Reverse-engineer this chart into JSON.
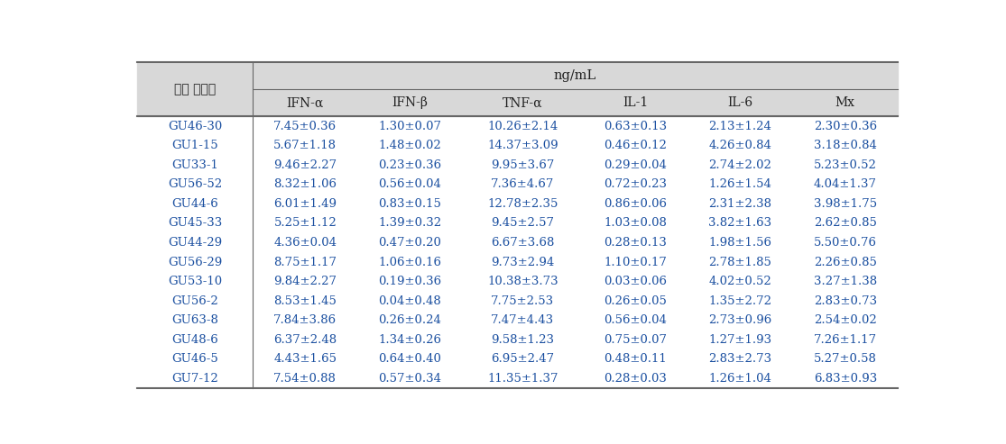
{
  "header_top": "ng/mL",
  "col_header_left": "분리 유산균",
  "col_headers": [
    "IFN-α",
    "IFN-β",
    "TNF-α",
    "IL-1",
    "IL-6",
    "Mx"
  ],
  "rows": [
    [
      "GU46-30",
      "7.45±0.36",
      "1.30±0.07",
      "10.26±2.14",
      "0.63±0.13",
      "2.13±1.24",
      "2.30±0.36"
    ],
    [
      "GU1-15",
      "5.67±1.18",
      "1.48±0.02",
      "14.37±3.09",
      "0.46±0.12",
      "4.26±0.84",
      "3.18±0.84"
    ],
    [
      "GU33-1",
      "9.46±2.27",
      "0.23±0.36",
      "9.95±3.67",
      "0.29±0.04",
      "2.74±2.02",
      "5.23±0.52"
    ],
    [
      "GU56-52",
      "8.32±1.06",
      "0.56±0.04",
      "7.36±4.67",
      "0.72±0.23",
      "1.26±1.54",
      "4.04±1.37"
    ],
    [
      "GU44-6",
      "6.01±1.49",
      "0.83±0.15",
      "12.78±2.35",
      "0.86±0.06",
      "2.31±2.38",
      "3.98±1.75"
    ],
    [
      "GU45-33",
      "5.25±1.12",
      "1.39±0.32",
      "9.45±2.57",
      "1.03±0.08",
      "3.82±1.63",
      "2.62±0.85"
    ],
    [
      "GU44-29",
      "4.36±0.04",
      "0.47±0.20",
      "6.67±3.68",
      "0.28±0.13",
      "1.98±1.56",
      "5.50±0.76"
    ],
    [
      "GU56-29",
      "8.75±1.17",
      "1.06±0.16",
      "9.73±2.94",
      "1.10±0.17",
      "2.78±1.85",
      "2.26±0.85"
    ],
    [
      "GU53-10",
      "9.84±2.27",
      "0.19±0.36",
      "10.38±3.73",
      "0.03±0.06",
      "4.02±0.52",
      "3.27±1.38"
    ],
    [
      "GU56-2",
      "8.53±1.45",
      "0.04±0.48",
      "7.75±2.53",
      "0.26±0.05",
      "1.35±2.72",
      "2.83±0.73"
    ],
    [
      "GU63-8",
      "7.84±3.86",
      "0.26±0.24",
      "7.47±4.43",
      "0.56±0.04",
      "2.73±0.96",
      "2.54±0.02"
    ],
    [
      "GU48-6",
      "6.37±2.48",
      "1.34±0.26",
      "9.58±1.23",
      "0.75±0.07",
      "1.27±1.93",
      "7.26±1.17"
    ],
    [
      "GU46-5",
      "4.43±1.65",
      "0.64±0.40",
      "6.95±2.47",
      "0.48±0.11",
      "2.83±2.73",
      "5.27±0.58"
    ],
    [
      "GU7-12",
      "7.54±0.88",
      "0.57±0.34",
      "11.35±1.37",
      "0.28±0.03",
      "1.26±1.04",
      "6.83±0.93"
    ]
  ],
  "text_color": "#222222",
  "data_text_color": "#1a4fa0",
  "line_color": "#666666",
  "bg_color": "#ffffff",
  "header_bg": "#d8d8d8",
  "font_size_data": 9.5,
  "font_size_header": 10.0,
  "font_size_top_header": 10.5,
  "col_widths_rel": [
    1.1,
    1.0,
    1.0,
    1.15,
    1.0,
    1.0,
    1.0
  ]
}
